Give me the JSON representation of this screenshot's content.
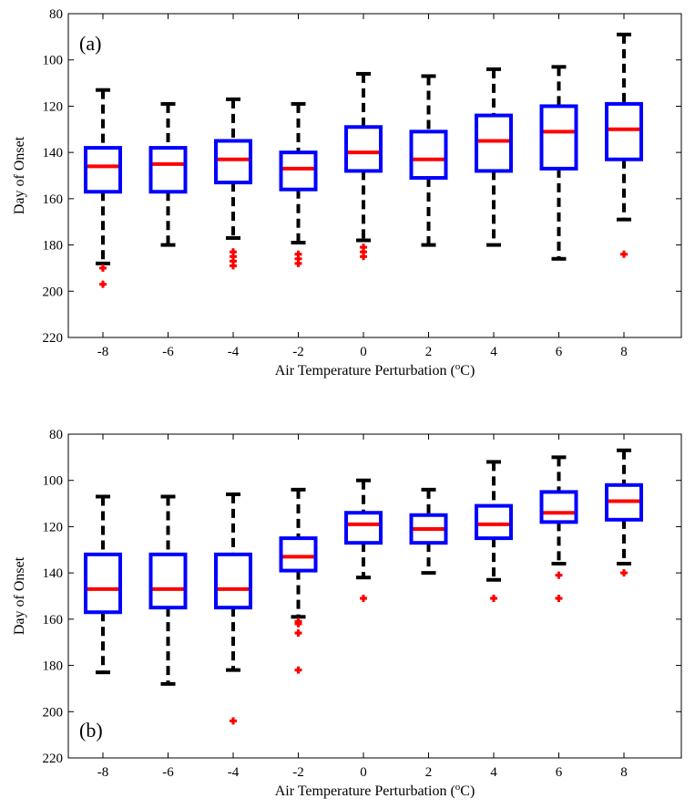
{
  "chart_data": [
    {
      "type": "box",
      "panel_label": "(a)",
      "xlabel": "Air Temperature Perturbation (oC)",
      "xlabel_parts": {
        "before": "Air Temperature Perturbation (",
        "sup": "o",
        "after": "C)"
      },
      "ylabel": "Day of Onset",
      "ylim": [
        80,
        220
      ],
      "y_reversed": true,
      "yticks": [
        80,
        100,
        120,
        140,
        160,
        180,
        200,
        220
      ],
      "categories": [
        "-8",
        "-6",
        "-4",
        "-2",
        "0",
        "2",
        "4",
        "6",
        "8"
      ],
      "colors": {
        "box": "#0000ff",
        "median": "#ff0000",
        "whisker": "#000000",
        "outlier": "#ff0000"
      },
      "boxes": [
        {
          "x": "-8",
          "whisker_low": 113,
          "q1": 138,
          "median": 146,
          "q3": 157,
          "whisker_high": 188,
          "outliers": [
            190,
            197
          ]
        },
        {
          "x": "-6",
          "whisker_low": 119,
          "q1": 138,
          "median": 145,
          "q3": 157,
          "whisker_high": 180,
          "outliers": []
        },
        {
          "x": "-4",
          "whisker_low": 117,
          "q1": 135,
          "median": 143,
          "q3": 153,
          "whisker_high": 177,
          "outliers": [
            183,
            185,
            187,
            189
          ]
        },
        {
          "x": "-2",
          "whisker_low": 119,
          "q1": 140,
          "median": 147,
          "q3": 156,
          "whisker_high": 179,
          "outliers": [
            184,
            186,
            188
          ]
        },
        {
          "x": "0",
          "whisker_low": 106,
          "q1": 129,
          "median": 140,
          "q3": 148,
          "whisker_high": 178,
          "outliers": [
            181,
            183,
            185
          ]
        },
        {
          "x": "2",
          "whisker_low": 107,
          "q1": 131,
          "median": 143,
          "q3": 151,
          "whisker_high": 180,
          "outliers": []
        },
        {
          "x": "4",
          "whisker_low": 104,
          "q1": 124,
          "median": 135,
          "q3": 148,
          "whisker_high": 180,
          "outliers": []
        },
        {
          "x": "6",
          "whisker_low": 103,
          "q1": 120,
          "median": 131,
          "q3": 147,
          "whisker_high": 186,
          "outliers": []
        },
        {
          "x": "8",
          "whisker_low": 89,
          "q1": 119,
          "median": 130,
          "q3": 143,
          "whisker_high": 169,
          "outliers": [
            184
          ]
        }
      ]
    },
    {
      "type": "box",
      "panel_label": "(b)",
      "xlabel": "Air Temperature Perturbation (oC)",
      "xlabel_parts": {
        "before": "Air Temperature Perturbation (",
        "sup": "o",
        "after": "C)"
      },
      "ylabel": "Day of Onset",
      "ylim": [
        80,
        220
      ],
      "y_reversed": true,
      "yticks": [
        80,
        100,
        120,
        140,
        160,
        180,
        200,
        220
      ],
      "categories": [
        "-8",
        "-6",
        "-4",
        "-2",
        "0",
        "2",
        "4",
        "6",
        "8"
      ],
      "colors": {
        "box": "#0000ff",
        "median": "#ff0000",
        "whisker": "#000000",
        "outlier": "#ff0000"
      },
      "boxes": [
        {
          "x": "-8",
          "whisker_low": 107,
          "q1": 132,
          "median": 147,
          "q3": 157,
          "whisker_high": 183,
          "outliers": []
        },
        {
          "x": "-6",
          "whisker_low": 107,
          "q1": 132,
          "median": 147,
          "q3": 155,
          "whisker_high": 188,
          "outliers": []
        },
        {
          "x": "-4",
          "whisker_low": 106,
          "q1": 132,
          "median": 147,
          "q3": 155,
          "whisker_high": 182,
          "outliers": [
            204
          ]
        },
        {
          "x": "-2",
          "whisker_low": 104,
          "q1": 125,
          "median": 133,
          "q3": 139,
          "whisker_high": 159,
          "outliers": [
            161,
            162,
            166,
            182
          ]
        },
        {
          "x": "0",
          "whisker_low": 100,
          "q1": 114,
          "median": 119,
          "q3": 127,
          "whisker_high": 142,
          "outliers": [
            151
          ]
        },
        {
          "x": "2",
          "whisker_low": 104,
          "q1": 115,
          "median": 121,
          "q3": 127,
          "whisker_high": 140,
          "outliers": []
        },
        {
          "x": "4",
          "whisker_low": 92,
          "q1": 111,
          "median": 119,
          "q3": 125,
          "whisker_high": 143,
          "outliers": [
            151
          ]
        },
        {
          "x": "6",
          "whisker_low": 90,
          "q1": 105,
          "median": 114,
          "q3": 118,
          "whisker_high": 136,
          "outliers": [
            141,
            151
          ]
        },
        {
          "x": "8",
          "whisker_low": 87,
          "q1": 102,
          "median": 109,
          "q3": 117,
          "whisker_high": 136,
          "outliers": [
            140
          ]
        }
      ]
    }
  ]
}
